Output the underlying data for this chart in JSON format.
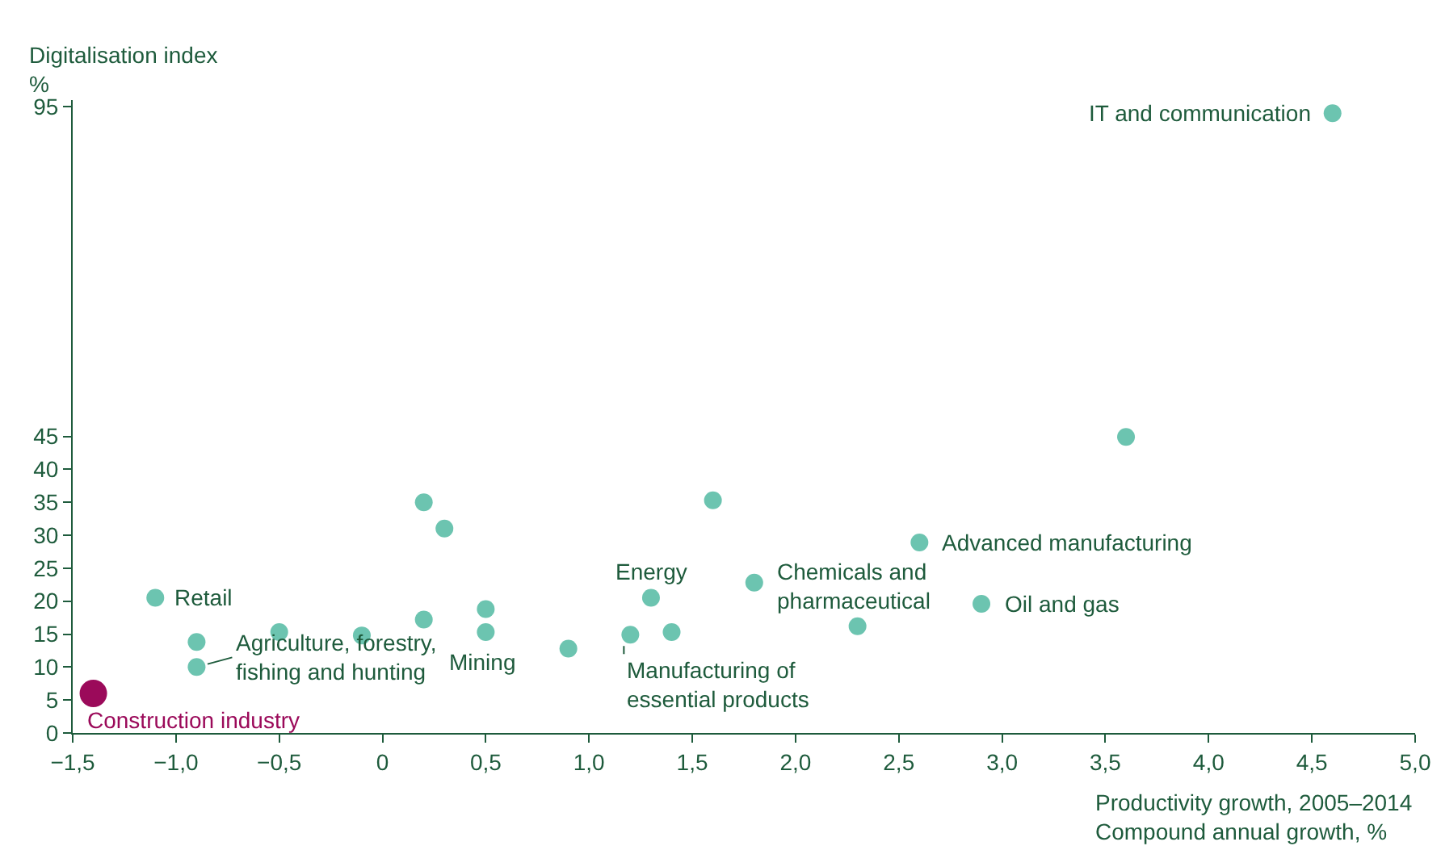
{
  "chart_data": {
    "type": "scatter",
    "ylabel": "Digitalisation index\n%",
    "xlabel": "Productivity growth, 2005–2014\nCompound annual growth, %",
    "series": [
      {
        "color": "#6cc4b0",
        "x": [
          -1.1,
          -0.9,
          -0.9,
          -0.5,
          -0.1,
          0.2,
          0.3,
          0.2,
          0.5,
          0.5,
          0.9,
          1.2,
          1.4,
          1.3,
          1.6,
          1.8,
          2.3,
          2.6,
          2.9,
          3.6
        ],
        "values": [
          20.5,
          13.8,
          10.0,
          15.3,
          14.8,
          35.0,
          31.0,
          17.2,
          18.8,
          15.3,
          12.8,
          14.9,
          15.3,
          20.5,
          35.3,
          22.8,
          16.2,
          28.9,
          19.6,
          44.9
        ]
      },
      {
        "color": "#6cc4b0",
        "x": [
          4.6
        ],
        "values": [
          94
        ]
      },
      {
        "color": "#9b0a5a",
        "x": [
          -1.4
        ],
        "values": [
          6
        ]
      }
    ],
    "xlim": [
      -1.5,
      5.0
    ],
    "xticks": [
      {
        "value": -1.5,
        "label": "−1,5"
      },
      {
        "value": -1,
        "label": "−1,0"
      },
      {
        "value": -0.5,
        "label": "−0,5"
      },
      0,
      {
        "value": 0.5,
        "label": "0,5"
      },
      {
        "value": 1,
        "label": "1,0"
      },
      {
        "value": 1.5,
        "label": "1,5"
      },
      {
        "value": 2,
        "label": "2,0"
      },
      {
        "value": 2.5,
        "label": "2,5"
      },
      {
        "value": 3,
        "label": "3,0"
      },
      {
        "value": 3.5,
        "label": "3,5"
      },
      {
        "value": 4,
        "label": "4,0"
      },
      {
        "value": 4.5,
        "label": "4,5"
      },
      {
        "value": 5,
        "label": "5,0"
      }
    ],
    "ylim": [
      0,
      96
    ],
    "yticks": [
      0,
      5,
      10,
      15,
      20,
      25,
      30,
      35,
      40,
      45,
      95
    ],
    "grid": false,
    "legend": false,
    "marker": "circle",
    "annotations": [
      {
        "text": "IT and communication",
        "x": 4.6,
        "y": 94
      },
      {
        "text": "Advanced manufacturing",
        "x": 2.6,
        "y": 28.9
      },
      {
        "text": "Chemicals and\npharmaceutical",
        "x": 1.8,
        "y": 22.8
      },
      {
        "text": "Energy",
        "x": 1.3,
        "y": 20.5
      },
      {
        "text": "Oil and gas",
        "x": 2.9,
        "y": 19.6
      },
      {
        "text": "Retail",
        "x": -1.1,
        "y": 20.5
      },
      {
        "text": "Mining",
        "x": 0.5,
        "y": 15.3
      },
      {
        "text": "Manufacturing of\nessential products",
        "x": 1.2,
        "y": 14.9
      },
      {
        "text": "Agriculture, forestry,\nfishing and hunting",
        "x": -0.9,
        "y": 10.0
      },
      {
        "text": "Construction industry",
        "x": -1.4,
        "y": 6
      }
    ]
  }
}
